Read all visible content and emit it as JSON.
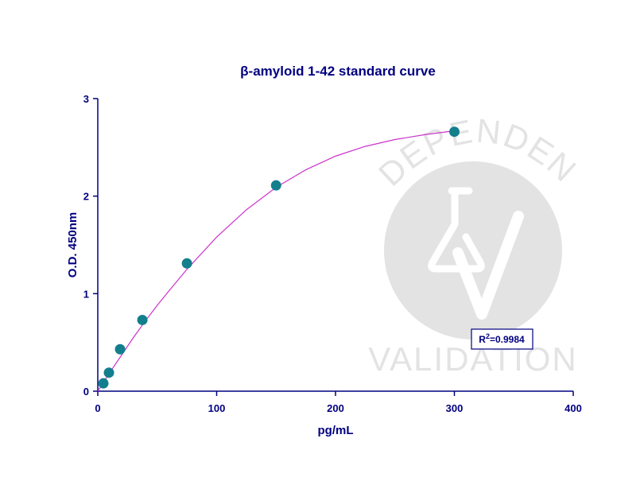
{
  "colors": {
    "axis": "#000080",
    "text": "#000080",
    "curve": "#cc33cc",
    "points": "#137f8c",
    "watermark": "#e3e3e3"
  },
  "watermark": {
    "top_text": "INDEPENDENT",
    "bottom_text": "VALIDATION",
    "icon": "flask-checkmark-icon"
  },
  "r2_label": {
    "prefix": "R",
    "sup": "2",
    "value": "=0.9984"
  },
  "chart_data": {
    "type": "scatter",
    "title": "β-amyloid 1-42 standard curve",
    "xlabel": "pg/mL",
    "ylabel": "O.D. 450nm",
    "xlim": [
      0,
      400
    ],
    "ylim": [
      0,
      3
    ],
    "xticks": [
      0,
      100,
      200,
      300,
      400
    ],
    "yticks": [
      0,
      1,
      2,
      3
    ],
    "grid": false,
    "series": [
      {
        "x": [
          4.69,
          9.38,
          18.75,
          37.5,
          75,
          150,
          300
        ],
        "y": [
          0.08,
          0.19,
          0.43,
          0.73,
          1.31,
          2.11,
          2.66
        ]
      }
    ],
    "fit": {
      "type": "curve",
      "x": [
        0,
        10,
        20,
        30,
        40,
        50,
        60,
        75,
        100,
        125,
        150,
        175,
        200,
        225,
        250,
        275,
        300
      ],
      "y": [
        0.0,
        0.19,
        0.37,
        0.55,
        0.72,
        0.88,
        1.03,
        1.25,
        1.58,
        1.86,
        2.09,
        2.27,
        2.41,
        2.51,
        2.58,
        2.63,
        2.67
      ]
    }
  }
}
